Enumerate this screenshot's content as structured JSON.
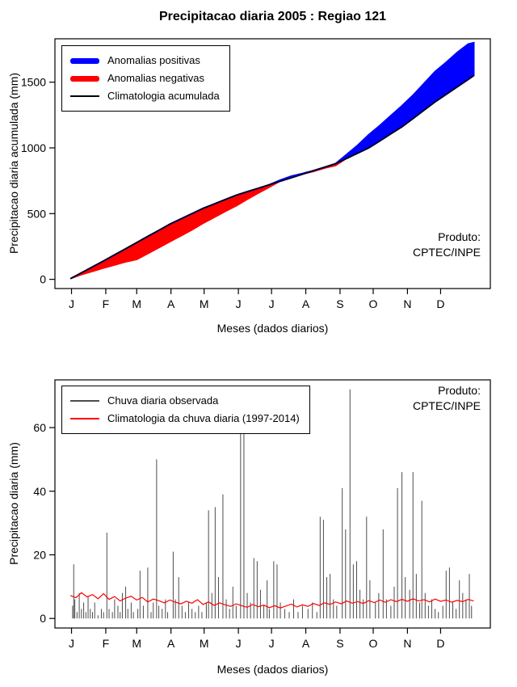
{
  "figure": {
    "produto_top": {
      "line1": "Produto:",
      "line2": "CPTEC/INPE"
    },
    "produto_bottom": {
      "line1": "Produto:",
      "line2": "CPTEC/INPE"
    }
  },
  "chart_data": [
    {
      "type": "area",
      "title": "Precipitacao diaria 2005 : Regiao 121",
      "xlabel": "Meses (dados diarios)",
      "ylabel": "Precipitacao diaria acumulada (mm)",
      "x_tick_labels": [
        "J",
        "F",
        "M",
        "A",
        "M",
        "J",
        "J",
        "A",
        "S",
        "O",
        "N",
        "D"
      ],
      "x_tick_days": [
        1,
        32,
        60,
        91,
        121,
        152,
        182,
        213,
        244,
        274,
        305,
        335
      ],
      "y_ticks": [
        0,
        500,
        1000,
        1500
      ],
      "xlim": [
        -14,
        380
      ],
      "ylim": [
        -70,
        1830
      ],
      "grid": false,
      "legend_position": "top-left",
      "legend": [
        {
          "label": "Anomalias positivas",
          "color": "#0000FF",
          "style": "thick"
        },
        {
          "label": "Anomalias negativas",
          "color": "#FF0000",
          "style": "thick"
        },
        {
          "label": "Climatologia acumulada",
          "color": "#000000",
          "style": "line"
        }
      ],
      "annotation": {
        "line1": "Produto:",
        "line2": "CPTEC/INPE"
      },
      "colors": {
        "positive_anomaly": "#0000FF",
        "negative_anomaly": "#FF0000",
        "climatology_line": "#000000"
      },
      "x_days": [
        0,
        10,
        20,
        30,
        40,
        50,
        60,
        70,
        80,
        90,
        100,
        110,
        120,
        130,
        140,
        150,
        160,
        170,
        180,
        190,
        200,
        210,
        220,
        230,
        240,
        250,
        260,
        270,
        280,
        290,
        300,
        310,
        320,
        330,
        340,
        350,
        360,
        365
      ],
      "climatology_cumulative": [
        5,
        50,
        95,
        140,
        187,
        233,
        280,
        327,
        373,
        420,
        460,
        500,
        540,
        573,
        607,
        640,
        667,
        693,
        720,
        747,
        773,
        800,
        827,
        853,
        880,
        920,
        960,
        1000,
        1053,
        1107,
        1160,
        1223,
        1287,
        1350,
        1407,
        1464,
        1521,
        1550
      ],
      "observed_cumulative": [
        5,
        35,
        60,
        85,
        108,
        132,
        150,
        195,
        240,
        285,
        330,
        375,
        425,
        470,
        515,
        558,
        608,
        655,
        700,
        755,
        785,
        805,
        820,
        845,
        865,
        950,
        1020,
        1100,
        1170,
        1245,
        1320,
        1400,
        1490,
        1580,
        1650,
        1725,
        1790,
        1800
      ]
    },
    {
      "type": "bar",
      "title": "",
      "xlabel": "Meses (dados diarios)",
      "ylabel": "Precipitacao diaria (mm)",
      "x_tick_labels": [
        "J",
        "F",
        "M",
        "A",
        "M",
        "J",
        "J",
        "A",
        "S",
        "O",
        "N",
        "D"
      ],
      "x_tick_days": [
        1,
        32,
        60,
        91,
        121,
        152,
        182,
        213,
        244,
        274,
        305,
        335
      ],
      "y_ticks": [
        0,
        20,
        40,
        60
      ],
      "xlim": [
        -14,
        380
      ],
      "ylim": [
        -3,
        75
      ],
      "grid": false,
      "legend_position": "top-left",
      "legend": [
        {
          "label": "Chuva diaria observada",
          "color": "#4D4D4D",
          "style": "line"
        },
        {
          "label": "Climatologia da chuva diaria (1997-2014)",
          "color": "#FF0000",
          "style": "line"
        }
      ],
      "annotation": {
        "line1": "Produto:",
        "line2": "CPTEC/INPE"
      },
      "colors": {
        "observed": "#4D4D4D",
        "climatology_line": "#FF0000"
      },
      "observed_daily_spikes": [
        [
          2,
          4
        ],
        [
          3,
          17
        ],
        [
          4,
          6
        ],
        [
          6,
          2
        ],
        [
          8,
          8
        ],
        [
          10,
          3
        ],
        [
          12,
          5
        ],
        [
          14,
          2
        ],
        [
          16,
          7
        ],
        [
          18,
          3
        ],
        [
          20,
          2
        ],
        [
          22,
          5
        ],
        [
          25,
          1
        ],
        [
          28,
          3
        ],
        [
          30,
          2
        ],
        [
          33,
          27
        ],
        [
          35,
          3
        ],
        [
          38,
          2
        ],
        [
          40,
          6
        ],
        [
          43,
          4
        ],
        [
          45,
          2
        ],
        [
          47,
          8
        ],
        [
          50,
          10
        ],
        [
          52,
          3
        ],
        [
          55,
          5
        ],
        [
          57,
          2
        ],
        [
          61,
          3
        ],
        [
          63,
          15
        ],
        [
          66,
          4
        ],
        [
          70,
          16
        ],
        [
          73,
          2
        ],
        [
          75,
          5
        ],
        [
          78,
          50
        ],
        [
          80,
          4
        ],
        [
          83,
          3
        ],
        [
          86,
          6
        ],
        [
          88,
          2
        ],
        [
          93,
          21
        ],
        [
          95,
          6
        ],
        [
          98,
          13
        ],
        [
          101,
          4
        ],
        [
          104,
          2
        ],
        [
          107,
          5
        ],
        [
          110,
          3
        ],
        [
          113,
          2
        ],
        [
          116,
          4
        ],
        [
          119,
          2
        ],
        [
          123,
          5
        ],
        [
          125,
          34
        ],
        [
          128,
          8
        ],
        [
          131,
          35
        ],
        [
          134,
          13
        ],
        [
          138,
          39
        ],
        [
          141,
          6
        ],
        [
          144,
          3
        ],
        [
          147,
          10
        ],
        [
          150,
          4
        ],
        [
          154,
          65
        ],
        [
          157,
          66
        ],
        [
          160,
          8
        ],
        [
          163,
          5
        ],
        [
          166,
          19
        ],
        [
          169,
          18
        ],
        [
          172,
          9
        ],
        [
          175,
          4
        ],
        [
          178,
          12
        ],
        [
          180,
          3
        ],
        [
          184,
          18
        ],
        [
          187,
          17
        ],
        [
          190,
          5
        ],
        [
          194,
          3
        ],
        [
          198,
          2
        ],
        [
          202,
          6
        ],
        [
          206,
          2
        ],
        [
          210,
          4
        ],
        [
          215,
          3
        ],
        [
          219,
          5
        ],
        [
          223,
          2
        ],
        [
          226,
          32
        ],
        [
          229,
          31
        ],
        [
          232,
          13
        ],
        [
          235,
          14
        ],
        [
          238,
          6
        ],
        [
          241,
          4
        ],
        [
          246,
          41
        ],
        [
          249,
          28
        ],
        [
          253,
          72
        ],
        [
          256,
          17
        ],
        [
          259,
          18
        ],
        [
          262,
          9
        ],
        [
          265,
          6
        ],
        [
          268,
          32
        ],
        [
          271,
          12
        ],
        [
          276,
          5
        ],
        [
          279,
          8
        ],
        [
          283,
          28
        ],
        [
          286,
          6
        ],
        [
          290,
          4
        ],
        [
          293,
          10
        ],
        [
          296,
          41
        ],
        [
          300,
          46
        ],
        [
          303,
          13
        ],
        [
          307,
          9
        ],
        [
          310,
          46
        ],
        [
          313,
          14
        ],
        [
          316,
          5
        ],
        [
          318,
          37
        ],
        [
          321,
          8
        ],
        [
          324,
          4
        ],
        [
          327,
          6
        ],
        [
          330,
          3
        ],
        [
          333,
          2
        ],
        [
          337,
          4
        ],
        [
          340,
          15
        ],
        [
          343,
          16
        ],
        [
          346,
          5
        ],
        [
          349,
          3
        ],
        [
          352,
          12
        ],
        [
          355,
          8
        ],
        [
          358,
          6
        ],
        [
          361,
          14
        ],
        [
          363,
          4
        ]
      ],
      "climatology_daily": {
        "step_days": 5,
        "values": [
          7.2,
          6.5,
          8.1,
          6.8,
          7.5,
          6.2,
          7.8,
          6.0,
          6.9,
          5.5,
          6.4,
          7.0,
          5.8,
          6.6,
          5.2,
          6.1,
          5.6,
          4.9,
          5.8,
          5.1,
          4.6,
          5.4,
          4.8,
          5.9,
          4.4,
          5.2,
          4.1,
          4.9,
          4.3,
          3.8,
          4.6,
          4.0,
          3.5,
          4.4,
          3.7,
          4.2,
          3.4,
          4.0,
          3.3,
          3.9,
          4.5,
          3.6,
          4.3,
          3.8,
          4.7,
          4.1,
          4.9,
          4.4,
          5.2,
          4.6,
          5.5,
          4.8,
          5.3,
          4.7,
          5.6,
          5.0,
          5.8,
          5.1,
          5.9,
          5.3,
          6.0,
          5.4,
          6.2,
          5.5,
          5.9,
          5.2,
          6.1,
          5.4,
          5.8,
          5.1,
          5.7,
          5.3,
          6.0,
          5.5
        ]
      }
    }
  ]
}
